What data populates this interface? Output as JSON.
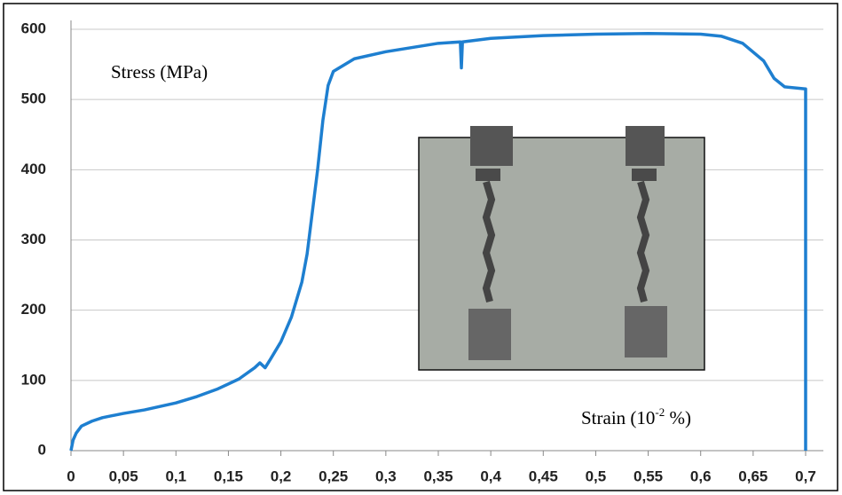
{
  "chart_data": {
    "type": "line",
    "y_label": "Stress (MPa)",
    "x_label": "Strain (10",
    "x_label_exponent": "-2",
    "x_label_end": " %)",
    "x": [
      0,
      0.002,
      0.005,
      0.01,
      0.02,
      0.03,
      0.05,
      0.07,
      0.1,
      0.12,
      0.14,
      0.16,
      0.175,
      0.18,
      0.185,
      0.19,
      0.2,
      0.21,
      0.22,
      0.225,
      0.23,
      0.235,
      0.24,
      0.245,
      0.25,
      0.27,
      0.3,
      0.35,
      0.371,
      0.372,
      0.373,
      0.4,
      0.45,
      0.5,
      0.55,
      0.6,
      0.62,
      0.64,
      0.66,
      0.67,
      0.68,
      0.7,
      0.7
    ],
    "values": [
      0,
      15,
      25,
      35,
      42,
      47,
      53,
      58,
      68,
      77,
      88,
      102,
      118,
      125,
      118,
      130,
      155,
      190,
      240,
      280,
      340,
      400,
      470,
      520,
      540,
      558,
      568,
      580,
      582,
      545,
      582,
      587,
      591,
      593,
      594,
      593,
      590,
      580,
      555,
      530,
      518,
      515,
      0
    ],
    "color": "#1e7fd0",
    "xlim": [
      0,
      0.7
    ],
    "ylim": [
      0,
      600
    ],
    "xticks": [
      0,
      {
        "value": 0.05,
        "label": "0,05"
      },
      {
        "value": 0.1,
        "label": "0,1"
      },
      {
        "value": 0.15,
        "label": "0,15"
      },
      {
        "value": 0.2,
        "label": "0,2"
      },
      {
        "value": 0.25,
        "label": "0,25"
      },
      {
        "value": 0.3,
        "label": "0,3"
      },
      {
        "value": 0.35,
        "label": "0,35"
      },
      {
        "value": 0.4,
        "label": "0,4"
      },
      {
        "value": 0.45,
        "label": "0,45"
      },
      {
        "value": 0.5,
        "label": "0,5"
      },
      {
        "value": 0.55,
        "label": "0,55"
      },
      {
        "value": 0.6,
        "label": "0,6"
      },
      {
        "value": 0.65,
        "label": "0,65"
      },
      {
        "value": 0.7,
        "label": "0,7"
      }
    ],
    "yticks": [
      0,
      100,
      200,
      300,
      400,
      500,
      600
    ],
    "grid": true
  }
}
